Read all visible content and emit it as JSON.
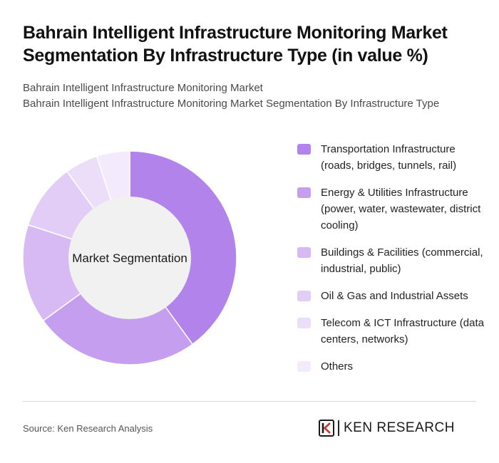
{
  "header": {
    "title": "Bahrain Intelligent Infrastructure Monitoring Market Segmentation By Infrastructure Type (in value %)",
    "subtitle_line1": "Bahrain Intelligent Infrastructure Monitoring Market",
    "subtitle_line2": "Bahrain Intelligent Infrastructure Monitoring Market Segmentation By Infrastructure Type"
  },
  "chart_data": {
    "type": "pie",
    "variant": "donut",
    "center_label": "Market Segmentation",
    "categories": [
      "Transportation Infrastructure (roads, bridges, tunnels, rail)",
      "Energy & Utilities Infrastructure (power, water, wastewater, district cooling)",
      "Buildings & Facilities (commercial, industrial, public)",
      "Oil & Gas and Industrial Assets",
      "Telecom & ICT Infrastructure (data centers, networks)",
      "Others"
    ],
    "values": [
      40,
      25,
      15,
      10,
      5,
      5
    ],
    "colors": [
      "#b183eb",
      "#c59ef0",
      "#d7b9f4",
      "#e2cdf7",
      "#ecdef9",
      "#f3ebfb"
    ],
    "legend_position": "right"
  },
  "footer": {
    "source": "Source: Ken Research Analysis",
    "brand": "KEN RESEARCH"
  }
}
